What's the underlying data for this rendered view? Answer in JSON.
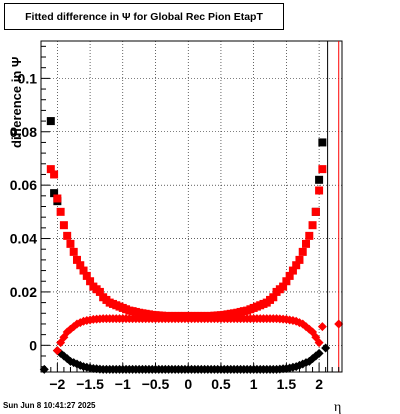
{
  "chart_data": {
    "type": "scatter",
    "title": "Fitted difference in  Ψ  for Global Rec Pion EtapT",
    "xlabel": "η",
    "ylabel": "difference in  Ψ",
    "xlim": [
      -2.25,
      2.35
    ],
    "ylim": [
      -0.01,
      0.114
    ],
    "x_ticks": [
      -2,
      -1.5,
      -1,
      -0.5,
      0,
      0.5,
      1,
      1.5,
      2
    ],
    "x_tick_labels": [
      "−2",
      "−1.5",
      "−1",
      "−0.5",
      "0",
      "0.5",
      "1",
      "1.5",
      "2"
    ],
    "y_ticks": [
      0,
      0.02,
      0.04,
      0.06,
      0.08,
      0.1
    ],
    "y_tick_labels": [
      "0",
      "0.02",
      "0.04",
      "0.06",
      "0.08",
      "0.1"
    ],
    "grid": true,
    "series": [
      {
        "marker": "square",
        "color": "#000000",
        "x": [
          -2.1,
          -2.05,
          -2.0,
          1.95,
          2.0,
          2.05
        ],
        "y": [
          0.084,
          0.057,
          0.054,
          0.05,
          0.062,
          0.076
        ]
      },
      {
        "marker": "square",
        "color": "#ff0000",
        "x": [
          -2.1,
          -2.05,
          -2.0,
          -1.95,
          -1.9,
          -1.85,
          -1.8,
          -1.75,
          -1.7,
          -1.65,
          -1.6,
          -1.55,
          -1.5,
          -1.45,
          -1.4,
          -1.35,
          -1.3,
          -1.25,
          -1.2,
          -1.15,
          -1.1,
          -1.05,
          -1.0,
          -0.95,
          -0.9,
          -0.85,
          -0.8,
          -0.75,
          -0.7,
          -0.65,
          -0.6,
          -0.55,
          -0.5,
          -0.45,
          -0.4,
          -0.35,
          -0.3,
          -0.25,
          -0.2,
          -0.15,
          -0.1,
          -0.05,
          0.0,
          0.05,
          0.1,
          0.15,
          0.2,
          0.25,
          0.3,
          0.35,
          0.4,
          0.45,
          0.5,
          0.55,
          0.6,
          0.65,
          0.7,
          0.75,
          0.8,
          0.85,
          0.9,
          0.95,
          1.0,
          1.05,
          1.1,
          1.15,
          1.2,
          1.25,
          1.3,
          1.35,
          1.4,
          1.45,
          1.5,
          1.55,
          1.6,
          1.65,
          1.7,
          1.75,
          1.8,
          1.85,
          1.9,
          1.95,
          2.0,
          2.05
        ],
        "y": [
          0.066,
          0.064,
          0.055,
          0.05,
          0.045,
          0.041,
          0.038,
          0.035,
          0.032,
          0.03,
          0.028,
          0.026,
          0.024,
          0.022,
          0.021,
          0.02,
          0.018,
          0.017,
          0.016,
          0.0155,
          0.015,
          0.0145,
          0.014,
          0.0135,
          0.013,
          0.0128,
          0.0125,
          0.0122,
          0.012,
          0.0118,
          0.0116,
          0.0114,
          0.0113,
          0.0112,
          0.0111,
          0.011,
          0.011,
          0.011,
          0.011,
          0.011,
          0.011,
          0.011,
          0.011,
          0.011,
          0.011,
          0.011,
          0.011,
          0.011,
          0.011,
          0.011,
          0.0111,
          0.0112,
          0.0113,
          0.0114,
          0.0116,
          0.0118,
          0.012,
          0.0122,
          0.0125,
          0.0128,
          0.013,
          0.0135,
          0.014,
          0.0145,
          0.015,
          0.0155,
          0.016,
          0.017,
          0.018,
          0.02,
          0.021,
          0.022,
          0.024,
          0.026,
          0.028,
          0.03,
          0.032,
          0.035,
          0.038,
          0.041,
          0.045,
          0.05,
          0.058,
          0.066
        ]
      },
      {
        "marker": "diamond",
        "color": "#000000",
        "x": [
          -2.2,
          -2.0,
          -1.95,
          -1.9,
          -1.85,
          -1.8,
          -1.75,
          -1.7,
          -1.65,
          -1.6,
          -1.55,
          -1.5,
          -1.45,
          -1.4,
          -1.35,
          -1.3,
          -1.25,
          -1.2,
          -1.15,
          -1.1,
          -1.05,
          -1.0,
          -0.95,
          -0.9,
          -0.85,
          -0.8,
          -0.75,
          -0.7,
          -0.65,
          -0.6,
          -0.55,
          -0.5,
          -0.45,
          -0.4,
          -0.35,
          -0.3,
          -0.25,
          -0.2,
          -0.15,
          -0.1,
          -0.05,
          0.0,
          0.05,
          0.1,
          0.15,
          0.2,
          0.25,
          0.3,
          0.35,
          0.4,
          0.45,
          0.5,
          0.55,
          0.6,
          0.65,
          0.7,
          0.75,
          0.8,
          0.85,
          0.9,
          0.95,
          1.0,
          1.05,
          1.1,
          1.15,
          1.2,
          1.25,
          1.3,
          1.35,
          1.4,
          1.45,
          1.5,
          1.55,
          1.6,
          1.65,
          1.7,
          1.75,
          1.8,
          1.85,
          1.9,
          1.95,
          2.0,
          2.1
        ],
        "y": [
          -0.009,
          -0.002,
          -0.003,
          -0.004,
          -0.005,
          -0.006,
          -0.0065,
          -0.007,
          -0.0075,
          -0.008,
          -0.0082,
          -0.0085,
          -0.0087,
          -0.0088,
          -0.0089,
          -0.009,
          -0.009,
          -0.009,
          -0.009,
          -0.009,
          -0.009,
          -0.009,
          -0.009,
          -0.009,
          -0.009,
          -0.009,
          -0.009,
          -0.009,
          -0.009,
          -0.009,
          -0.009,
          -0.009,
          -0.009,
          -0.009,
          -0.009,
          -0.009,
          -0.009,
          -0.009,
          -0.009,
          -0.009,
          -0.009,
          -0.009,
          -0.009,
          -0.009,
          -0.009,
          -0.009,
          -0.009,
          -0.009,
          -0.009,
          -0.009,
          -0.009,
          -0.009,
          -0.009,
          -0.009,
          -0.009,
          -0.009,
          -0.009,
          -0.009,
          -0.009,
          -0.009,
          -0.009,
          -0.009,
          -0.009,
          -0.009,
          -0.009,
          -0.009,
          -0.009,
          -0.009,
          -0.009,
          -0.0089,
          -0.0088,
          -0.0087,
          -0.0085,
          -0.0082,
          -0.008,
          -0.0075,
          -0.007,
          -0.0065,
          -0.006,
          -0.005,
          -0.004,
          -0.003,
          -0.001
        ]
      },
      {
        "marker": "diamond",
        "color": "#ff0000",
        "x": [
          -2.0,
          -1.95,
          -1.9,
          -1.85,
          -1.8,
          -1.75,
          -1.7,
          -1.65,
          -1.6,
          -1.55,
          -1.5,
          -1.45,
          -1.4,
          -1.35,
          -1.3,
          -1.25,
          -1.2,
          -1.15,
          -1.1,
          -1.05,
          -1.0,
          -0.95,
          -0.9,
          -0.85,
          -0.8,
          -0.75,
          -0.7,
          -0.65,
          -0.6,
          -0.55,
          -0.5,
          -0.45,
          -0.4,
          -0.35,
          -0.3,
          -0.25,
          -0.2,
          -0.15,
          -0.1,
          -0.05,
          0.0,
          0.05,
          0.1,
          0.15,
          0.2,
          0.25,
          0.3,
          0.35,
          0.4,
          0.45,
          0.5,
          0.55,
          0.6,
          0.65,
          0.7,
          0.75,
          0.8,
          0.85,
          0.9,
          0.95,
          1.0,
          1.05,
          1.1,
          1.15,
          1.2,
          1.25,
          1.3,
          1.35,
          1.4,
          1.45,
          1.5,
          1.55,
          1.6,
          1.65,
          1.7,
          1.75,
          1.8,
          1.85,
          1.9,
          1.95,
          2.0,
          2.05,
          2.3
        ],
        "y": [
          -0.002,
          0.001,
          0.003,
          0.005,
          0.006,
          0.007,
          0.008,
          0.0085,
          0.009,
          0.0093,
          0.0095,
          0.0097,
          0.0098,
          0.0099,
          0.01,
          0.01,
          0.01,
          0.01,
          0.01,
          0.01,
          0.01,
          0.01,
          0.01,
          0.01,
          0.01,
          0.01,
          0.01,
          0.01,
          0.01,
          0.01,
          0.01,
          0.01,
          0.01,
          0.01,
          0.01,
          0.01,
          0.01,
          0.01,
          0.01,
          0.01,
          0.01,
          0.01,
          0.01,
          0.01,
          0.01,
          0.01,
          0.01,
          0.01,
          0.01,
          0.01,
          0.01,
          0.01,
          0.01,
          0.01,
          0.01,
          0.01,
          0.01,
          0.01,
          0.01,
          0.01,
          0.01,
          0.01,
          0.01,
          0.01,
          0.01,
          0.01,
          0.01,
          0.01,
          0.0099,
          0.0098,
          0.0097,
          0.0095,
          0.0093,
          0.009,
          0.0085,
          0.008,
          0.007,
          0.006,
          0.005,
          0.003,
          0.001,
          0.007,
          0.008
        ]
      }
    ]
  },
  "timestamp": "Sun Jun  8 10:41:27 2025"
}
